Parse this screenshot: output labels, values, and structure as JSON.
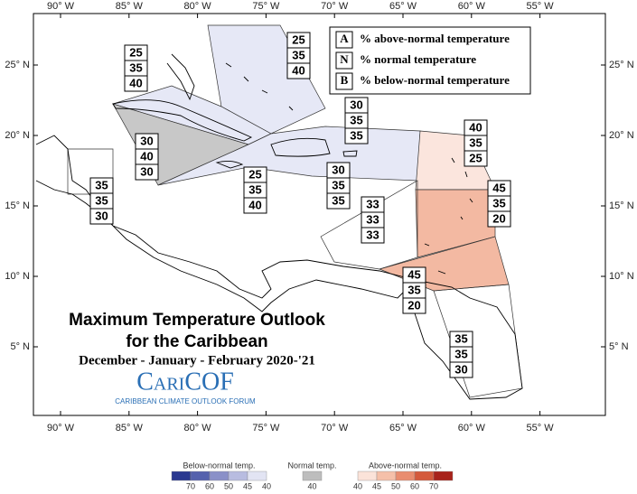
{
  "map": {
    "lon_labels": [
      "90° W",
      "85° W",
      "80° W",
      "75° W",
      "70° W",
      "65° W",
      "60° W",
      "55° W"
    ],
    "lat_labels": [
      "25° N",
      "20° N",
      "15° N",
      "10° N",
      "5° N"
    ],
    "key": [
      {
        "letter": "A",
        "text": "% above-normal temperature"
      },
      {
        "letter": "N",
        "text": "% normal temperature"
      },
      {
        "letter": "B",
        "text": "% below-normal temperature"
      }
    ],
    "regions": [
      [
        25,
        35,
        40
      ],
      [
        25,
        35,
        40
      ],
      [
        30,
        40,
        30
      ],
      [
        25,
        35,
        40
      ],
      [
        30,
        35,
        35
      ],
      [
        30,
        35,
        35
      ],
      [
        35,
        35,
        30
      ],
      [
        40,
        35,
        25
      ],
      [
        45,
        35,
        20
      ],
      [
        33,
        33,
        33
      ],
      [
        45,
        35,
        20
      ],
      [
        35,
        35,
        30
      ]
    ],
    "title": [
      "Maximum Temperature Outlook",
      "for the Caribbean"
    ],
    "subtitle": "December - January - February 2020-'21",
    "logo": "CariCOF",
    "logo_caption": "CARIBBEAN CLIMATE OUTLOOK FORUM"
  },
  "scale": [
    {
      "title": "Below-normal temp.",
      "colors": [
        "#2b3990",
        "#5561ad",
        "#8a90c8",
        "#b8bce0",
        "#e2e4f3"
      ],
      "labels": [
        70,
        60,
        50,
        45,
        40
      ]
    },
    {
      "title": "Normal temp.",
      "colors": [
        "#bdbdbd"
      ],
      "labels": [
        40
      ]
    },
    {
      "title": "Above-normal temp.",
      "colors": [
        "#fbe3d9",
        "#f5c0a9",
        "#e98d6f",
        "#d45a3c",
        "#a8231b"
      ],
      "labels": [
        40,
        45,
        50,
        60,
        70
      ]
    }
  ]
}
